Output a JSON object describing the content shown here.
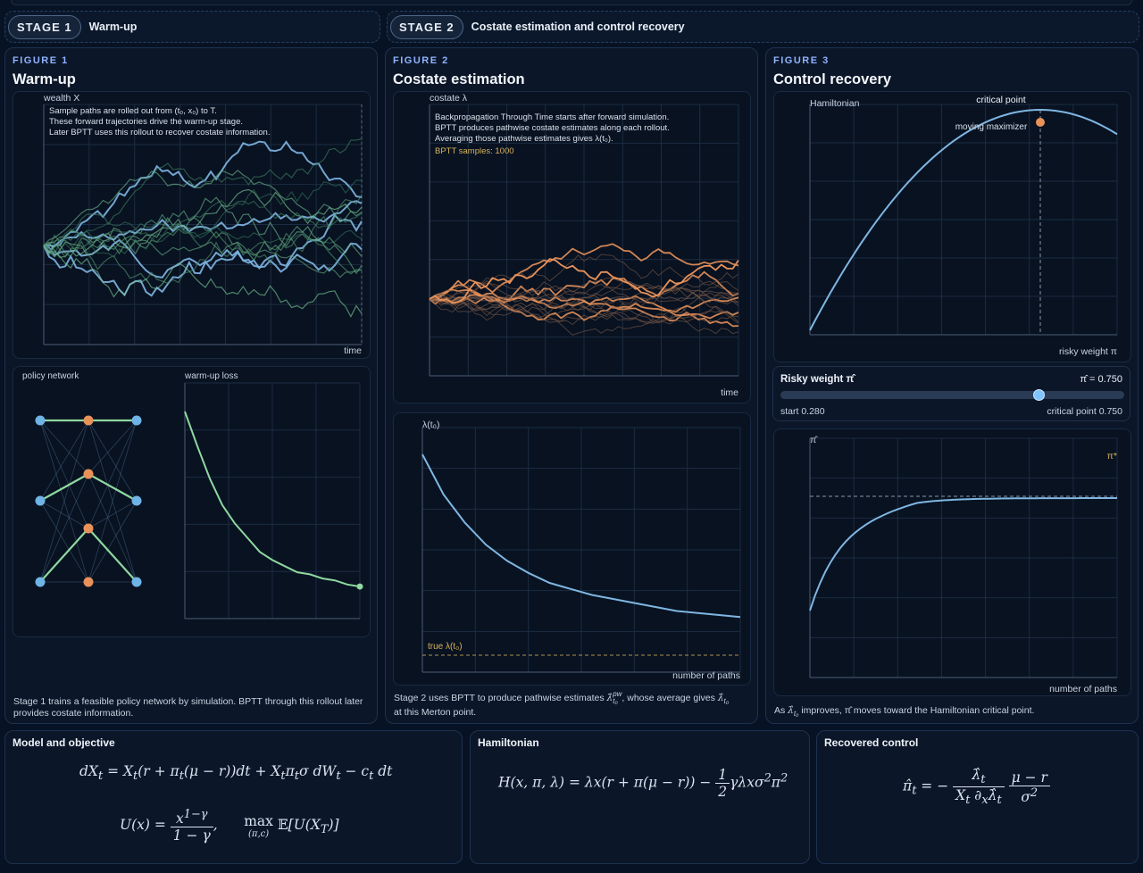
{
  "stages": [
    {
      "pill": "STAGE 1",
      "title": "Warm-up"
    },
    {
      "pill": "STAGE 2",
      "title": "Costate estimation and control recovery"
    }
  ],
  "figure1": {
    "label": "FIGURE 1",
    "title": "Warm-up",
    "paths": {
      "ylabel": "wealth X",
      "xlabel": "time",
      "notes": [
        "Sample paths are rolled out from (t₀, x₀) to T.",
        "These forward trajectories drive the warm-up stage.",
        "Later BPTT uses this rollout to recover costate information."
      ]
    },
    "network_label": "policy network",
    "loss": {
      "label": "warm-up loss",
      "values": [
        1.0,
        0.83,
        0.67,
        0.54,
        0.45,
        0.38,
        0.31,
        0.27,
        0.24,
        0.21,
        0.2,
        0.18,
        0.17,
        0.15,
        0.14
      ]
    },
    "caption": "Stage 1 trains a feasible policy network by simulation. BPTT through this rollout later provides costate information."
  },
  "figure2": {
    "label": "FIGURE 2",
    "title": "Costate estimation",
    "paths": {
      "ylabel": "costate λ",
      "xlabel": "time",
      "notes": [
        "Backpropagation Through Time starts after forward simulation.",
        "BPTT produces pathwise costate estimates along each rollout.",
        "Averaging those pathwise estimates gives λ(t₀)."
      ],
      "samples": "BPTT samples: 1000"
    },
    "convergence": {
      "ylabel": "λ(t₀)",
      "xlabel": "number of paths",
      "true_label": "true λ(t₀)",
      "values": [
        1.0,
        0.8,
        0.66,
        0.55,
        0.47,
        0.41,
        0.36,
        0.33,
        0.3,
        0.28,
        0.26,
        0.24,
        0.22,
        0.21,
        0.2,
        0.19
      ],
      "true_value": 0.0
    },
    "caption_parts": [
      "Stage 2 uses BPTT to produce pathwise estimates ",
      "λ̂",
      "pw",
      "t₀",
      ", whose average gives ",
      "λ̂",
      "t₀",
      " at this Merton point."
    ]
  },
  "figure3": {
    "label": "FIGURE 3",
    "title": "Control recovery",
    "hamiltonian": {
      "ylabel": "Hamiltonian",
      "xlabel": "risky weight π",
      "critical_label": "critical point",
      "moving_label": "moving maximizer",
      "critical_pi": 0.75,
      "pi_range": [
        0,
        1
      ]
    },
    "slider": {
      "title": "Risky weight π̂",
      "value_text": "π̂ = 0.750",
      "start_text": "start 0.280",
      "critical_text": "critical point 0.750",
      "value": 0.75,
      "start": 0.28
    },
    "pi_chart": {
      "ylabel": "π̂",
      "xlabel": "number of paths",
      "target_label": "π*",
      "start": 0.28,
      "target": 0.75
    },
    "caption_parts": [
      "As ",
      "λ̂",
      "t₀",
      " improves, π̂ moves toward the Hamiltonian critical point."
    ]
  },
  "equations": {
    "model_title": "Model and objective",
    "hamiltonian_title": "Hamiltonian",
    "control_title": "Recovered control"
  },
  "colors": {
    "blue": "#7fb6e2",
    "orange": "#e8925a",
    "green": "#8fd8a0",
    "gold": "#d9b45b"
  }
}
